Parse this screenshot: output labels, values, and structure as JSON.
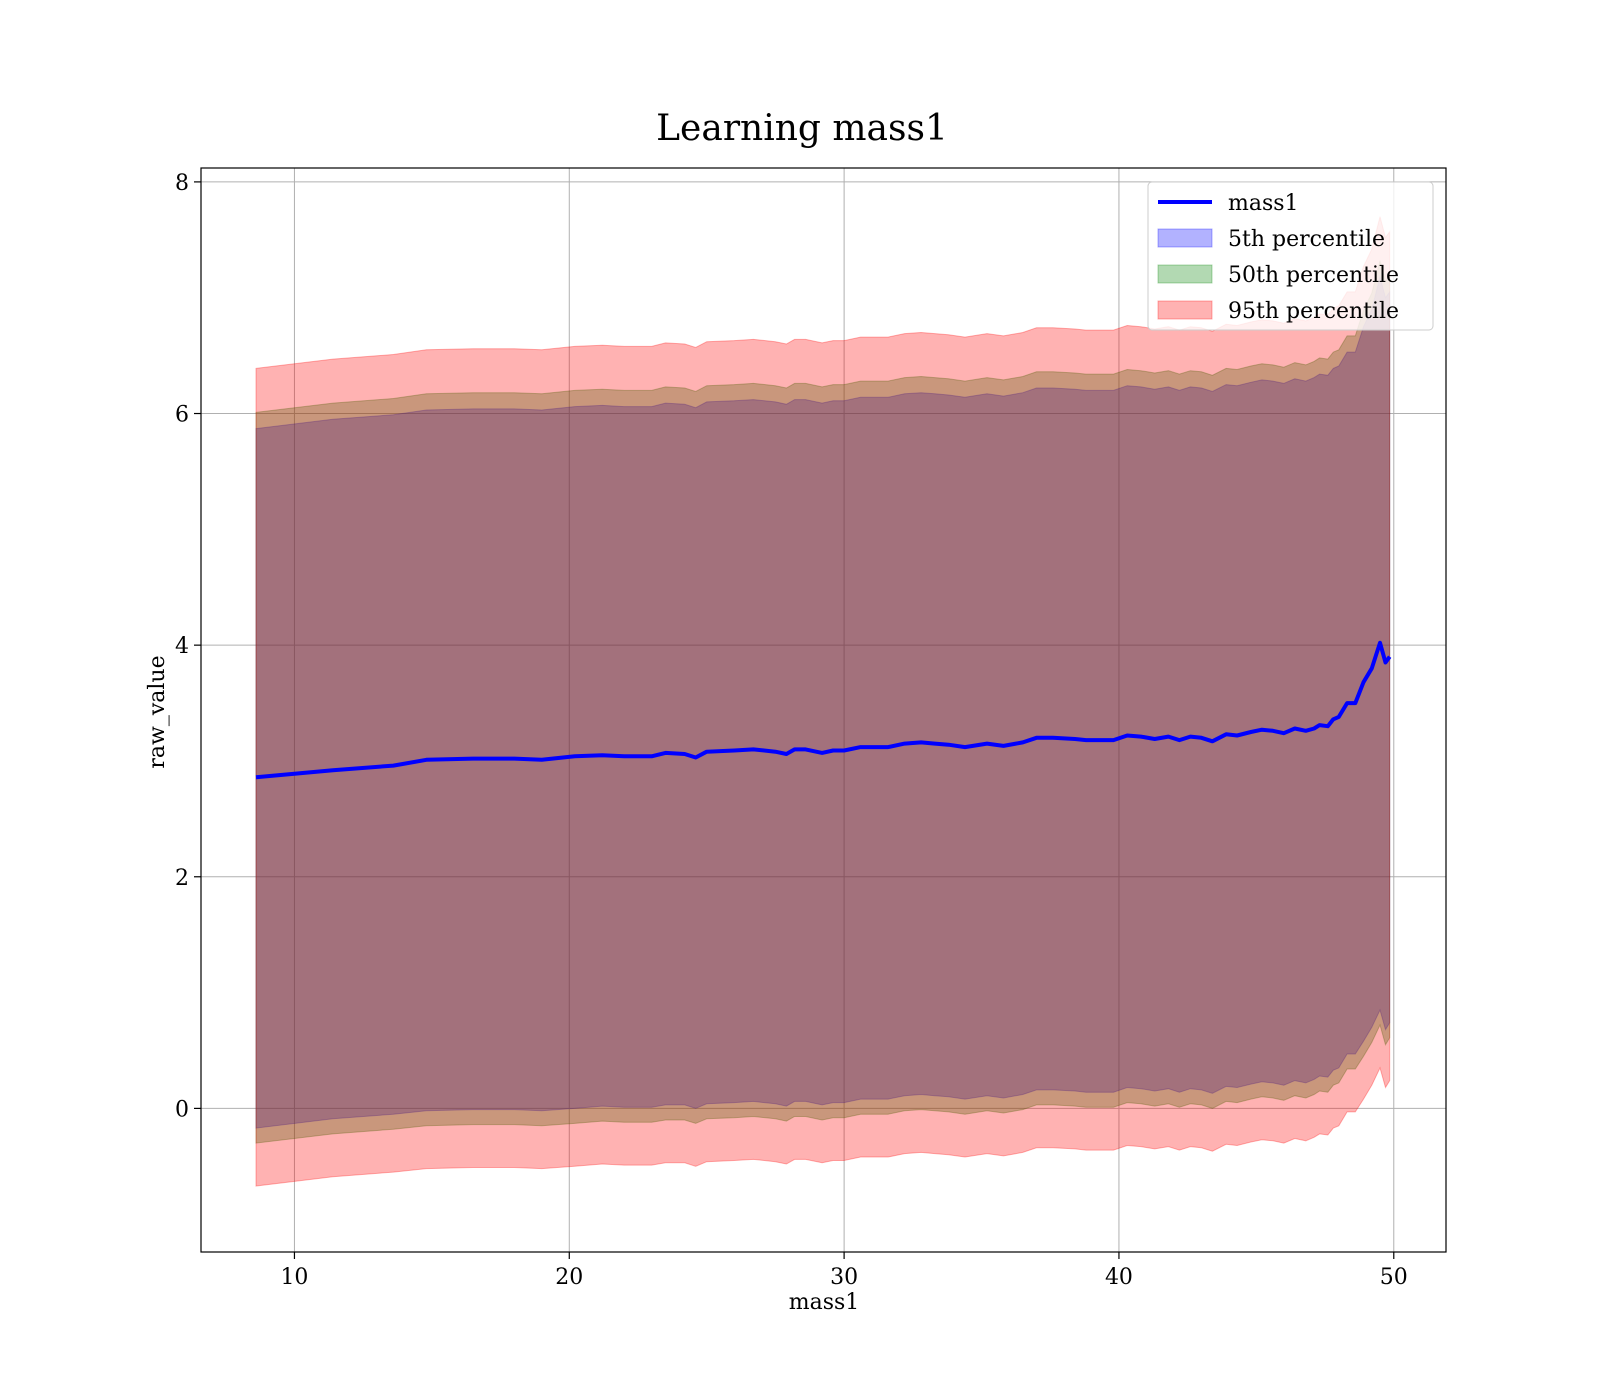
{
  "chart_data": {
    "type": "area",
    "title": "Learning mass1",
    "xlabel": "mass1",
    "ylabel": "raw_value",
    "xlim": [
      6.6,
      51.9
    ],
    "ylim": [
      -1.24,
      8.12
    ],
    "xticks": [
      10,
      20,
      30,
      40,
      50
    ],
    "yticks": [
      0,
      2,
      4,
      6,
      8
    ],
    "grid": true,
    "legend_position": "top-right",
    "legend": [
      {
        "name": "mass1",
        "kind": "line",
        "color": "#0000ff"
      },
      {
        "name": "5th percentile",
        "kind": "band",
        "color": "#0000ff"
      },
      {
        "name": "50th percentile",
        "kind": "band",
        "color": "#008000"
      },
      {
        "name": "95th percentile",
        "kind": "band",
        "color": "#ff0000"
      }
    ],
    "x": [
      8.6,
      11.4,
      13.6,
      14.8,
      16.5,
      17.3,
      18.0,
      19.0,
      20.2,
      21.2,
      22.0,
      23.0,
      23.5,
      24.2,
      24.6,
      25.0,
      26.0,
      26.7,
      27.5,
      27.9,
      28.2,
      28.6,
      29.2,
      29.6,
      30.0,
      30.6,
      31.0,
      31.6,
      32.2,
      32.8,
      33.3,
      33.8,
      34.4,
      35.2,
      35.8,
      36.5,
      37.0,
      37.6,
      38.4,
      38.8,
      39.4,
      39.8,
      40.3,
      40.8,
      41.3,
      41.8,
      42.2,
      42.6,
      43.0,
      43.4,
      43.9,
      44.3,
      44.8,
      45.2,
      45.6,
      46.0,
      46.4,
      46.8,
      47.1,
      47.3,
      47.6,
      47.8,
      48.0,
      48.3,
      48.6,
      48.9,
      49.2,
      49.5,
      49.7,
      49.85
    ],
    "series": [
      {
        "name": "mass1",
        "color": "#0000ff",
        "values": [
          2.86,
          2.92,
          2.96,
          3.01,
          3.02,
          3.02,
          3.02,
          3.01,
          3.04,
          3.05,
          3.04,
          3.04,
          3.07,
          3.06,
          3.03,
          3.08,
          3.09,
          3.1,
          3.08,
          3.06,
          3.1,
          3.1,
          3.07,
          3.09,
          3.09,
          3.12,
          3.12,
          3.12,
          3.15,
          3.16,
          3.15,
          3.14,
          3.12,
          3.15,
          3.13,
          3.16,
          3.2,
          3.2,
          3.19,
          3.18,
          3.18,
          3.18,
          3.22,
          3.21,
          3.19,
          3.21,
          3.18,
          3.21,
          3.2,
          3.17,
          3.23,
          3.22,
          3.25,
          3.27,
          3.26,
          3.24,
          3.28,
          3.26,
          3.28,
          3.31,
          3.3,
          3.36,
          3.38,
          3.5,
          3.5,
          3.68,
          3.8,
          4.02,
          3.85,
          3.9
        ]
      }
    ],
    "bands": [
      {
        "name": "5th percentile",
        "color": "#0000ff",
        "opacity": 0.3,
        "offset_lower": 0.0,
        "offset_upper": 0.0
      },
      {
        "name": "50th percentile",
        "color": "#008000",
        "opacity": 0.3,
        "offset_lower": 0.13,
        "offset_upper": 0.14
      },
      {
        "name": "95th percentile",
        "color": "#ff0000",
        "opacity": 0.3,
        "offset_lower": 0.5,
        "offset_upper": 0.52
      }
    ],
    "inner_band": {
      "lower": [
        -0.17,
        -0.09,
        -0.05,
        -0.02,
        -0.01,
        -0.01,
        -0.01,
        -0.02,
        0.0,
        0.02,
        0.01,
        0.01,
        0.03,
        0.03,
        0.0,
        0.04,
        0.05,
        0.06,
        0.04,
        0.02,
        0.06,
        0.06,
        0.03,
        0.05,
        0.05,
        0.08,
        0.08,
        0.08,
        0.11,
        0.12,
        0.11,
        0.1,
        0.08,
        0.11,
        0.09,
        0.12,
        0.16,
        0.16,
        0.15,
        0.14,
        0.14,
        0.14,
        0.18,
        0.17,
        0.15,
        0.17,
        0.14,
        0.17,
        0.16,
        0.13,
        0.19,
        0.18,
        0.21,
        0.23,
        0.22,
        0.2,
        0.24,
        0.22,
        0.25,
        0.28,
        0.27,
        0.33,
        0.35,
        0.47,
        0.47,
        0.58,
        0.7,
        0.85,
        0.68,
        0.74
      ],
      "upper": [
        5.87,
        5.95,
        5.99,
        6.03,
        6.04,
        6.04,
        6.04,
        6.03,
        6.06,
        6.07,
        6.06,
        6.06,
        6.09,
        6.08,
        6.05,
        6.1,
        6.11,
        6.12,
        6.1,
        6.08,
        6.12,
        6.12,
        6.09,
        6.11,
        6.11,
        6.14,
        6.14,
        6.14,
        6.17,
        6.18,
        6.17,
        6.16,
        6.14,
        6.17,
        6.15,
        6.18,
        6.22,
        6.22,
        6.21,
        6.2,
        6.2,
        6.2,
        6.24,
        6.23,
        6.21,
        6.23,
        6.2,
        6.23,
        6.22,
        6.19,
        6.25,
        6.24,
        6.27,
        6.29,
        6.28,
        6.26,
        6.3,
        6.28,
        6.31,
        6.34,
        6.33,
        6.39,
        6.41,
        6.53,
        6.53,
        6.75,
        6.9,
        7.18,
        7.0,
        7.05
      ]
    }
  }
}
